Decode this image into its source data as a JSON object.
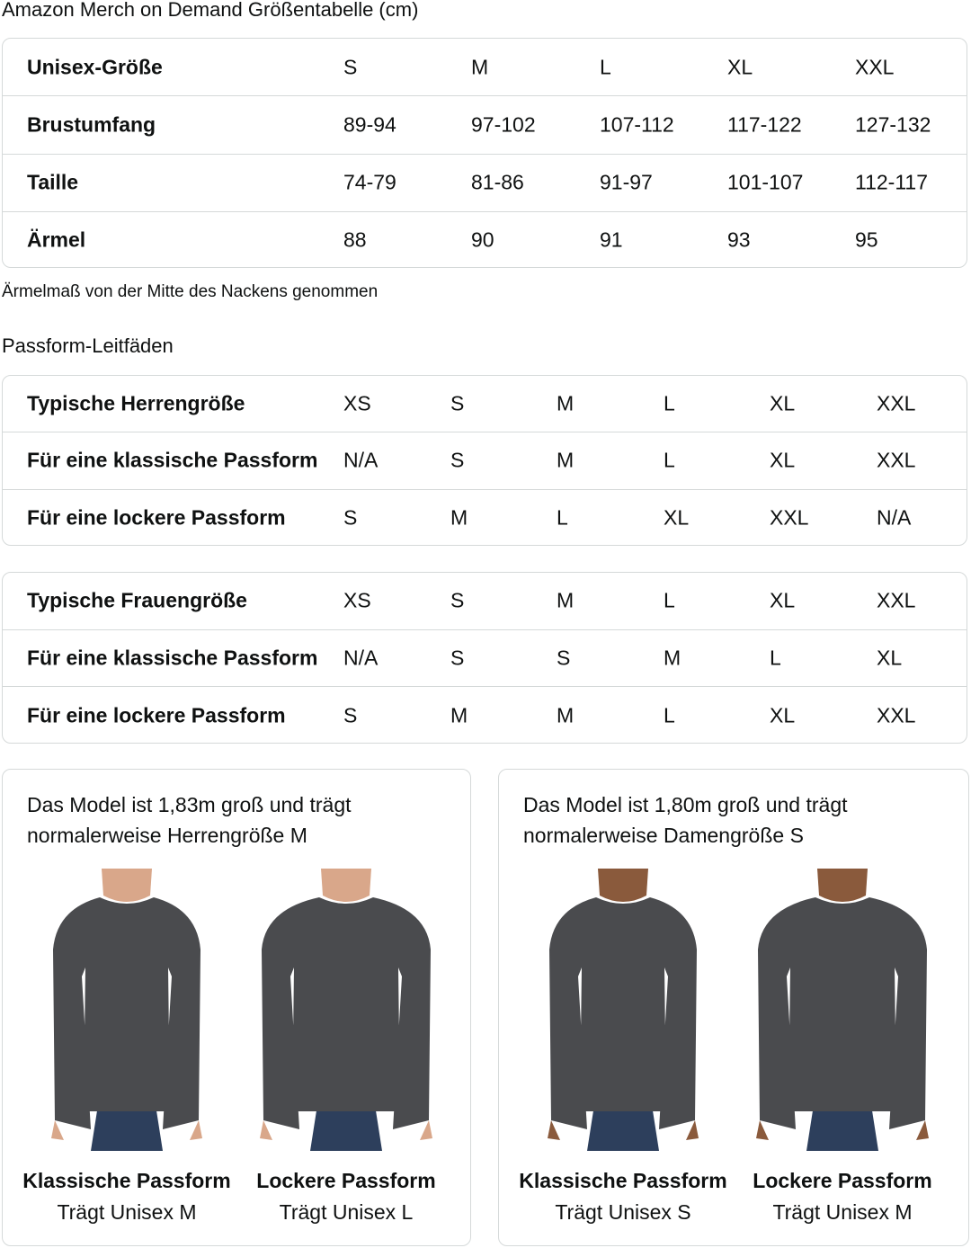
{
  "title": "Amazon Merch on Demand Größentabelle (cm)",
  "size_table": {
    "rows": [
      {
        "label": "Unisex-Größe",
        "values": [
          "S",
          "M",
          "L",
          "XL",
          "XXL"
        ]
      },
      {
        "label": "Brustumfang",
        "values": [
          "89-94",
          "97-102",
          "107-112",
          "117-122",
          "127-132"
        ]
      },
      {
        "label": "Taille",
        "values": [
          "74-79",
          "81-86",
          "91-97",
          "101-107",
          "112-117"
        ]
      },
      {
        "label": "Ärmel",
        "values": [
          "88",
          "90",
          "91",
          "93",
          "95"
        ]
      }
    ]
  },
  "note": "Ärmelmaß von der Mitte des Nackens genommen",
  "fit_guide_title": "Passform-Leitfäden",
  "men_table": {
    "rows": [
      {
        "label": "Typische Herrengröße",
        "values": [
          "XS",
          "S",
          "M",
          "L",
          "XL",
          "XXL"
        ]
      },
      {
        "label": "Für eine klassische Passform",
        "values": [
          "N/A",
          "S",
          "M",
          "L",
          "XL",
          "XXL"
        ]
      },
      {
        "label": "Für eine lockere Passform",
        "values": [
          "S",
          "M",
          "L",
          "XL",
          "XXL",
          "N/A"
        ]
      }
    ]
  },
  "women_table": {
    "rows": [
      {
        "label": "Typische Frauengröße",
        "values": [
          "XS",
          "S",
          "M",
          "L",
          "XL",
          "XXL"
        ]
      },
      {
        "label": "Für eine klassische Passform",
        "values": [
          "N/A",
          "S",
          "S",
          "M",
          "L",
          "XL"
        ]
      },
      {
        "label": "Für eine lockere Passform",
        "values": [
          "S",
          "M",
          "M",
          "L",
          "XL",
          "XXL"
        ]
      }
    ]
  },
  "cards": [
    {
      "text": "Das Model ist 1,83m groß und trägt normalerweise Herrengröße M",
      "figures": [
        {
          "fit": "Klassische Passform",
          "wears": "Trägt Unisex M",
          "loose": false,
          "skin": "#d9a78a"
        },
        {
          "fit": "Lockere Passform",
          "wears": "Trägt Unisex L",
          "loose": true,
          "skin": "#d9a78a"
        }
      ]
    },
    {
      "text": "Das Model ist 1,80m groß und trägt normalerweise Damengröße S",
      "figures": [
        {
          "fit": "Klassische Passform",
          "wears": "Trägt Unisex S",
          "loose": false,
          "skin": "#8a5a3c"
        },
        {
          "fit": "Lockere Passform",
          "wears": "Trägt Unisex M",
          "loose": true,
          "skin": "#8a5a3c"
        }
      ]
    }
  ],
  "colors": {
    "border": "#d5d9d9",
    "shirt": "#4a4b4e",
    "jeans": "#2d3f5c"
  }
}
